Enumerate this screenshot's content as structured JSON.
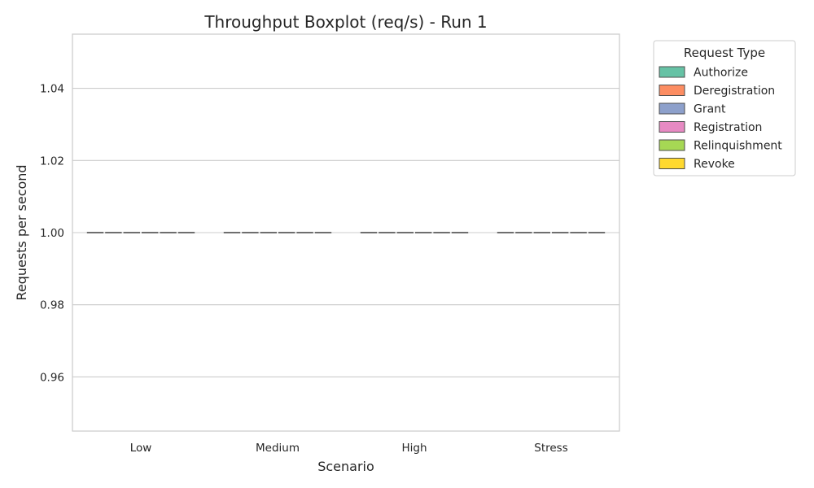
{
  "chart_data": {
    "type": "boxplot",
    "title": "Throughput Boxplot (req/s) - Run 1",
    "xlabel": "Scenario",
    "ylabel": "Requests per second",
    "categories": [
      "Low",
      "Medium",
      "High",
      "Stress"
    ],
    "ylim": [
      0.945,
      1.055
    ],
    "yticks": [
      "0.96",
      "0.98",
      "1.00",
      "1.02",
      "1.04"
    ],
    "ytick_values": [
      0.96,
      0.98,
      1.0,
      1.02,
      1.04
    ],
    "grid": true,
    "legend": {
      "title": "Request Type",
      "placement": "outside-top-right"
    },
    "series": [
      {
        "name": "Authorize",
        "color": "#66c2a5",
        "values": [
          1.0,
          1.0,
          1.0,
          1.0
        ]
      },
      {
        "name": "Deregistration",
        "color": "#fc8d62",
        "values": [
          1.0,
          1.0,
          1.0,
          1.0
        ]
      },
      {
        "name": "Grant",
        "color": "#8da0cb",
        "values": [
          1.0,
          1.0,
          1.0,
          1.0
        ]
      },
      {
        "name": "Registration",
        "color": "#e78ac3",
        "values": [
          1.0,
          1.0,
          1.0,
          1.0
        ]
      },
      {
        "name": "Relinquishment",
        "color": "#a6d854",
        "values": [
          1.0,
          1.0,
          1.0,
          1.0
        ]
      },
      {
        "name": "Revoke",
        "color": "#ffd92f",
        "values": [
          1.0,
          1.0,
          1.0,
          1.0
        ]
      }
    ]
  }
}
